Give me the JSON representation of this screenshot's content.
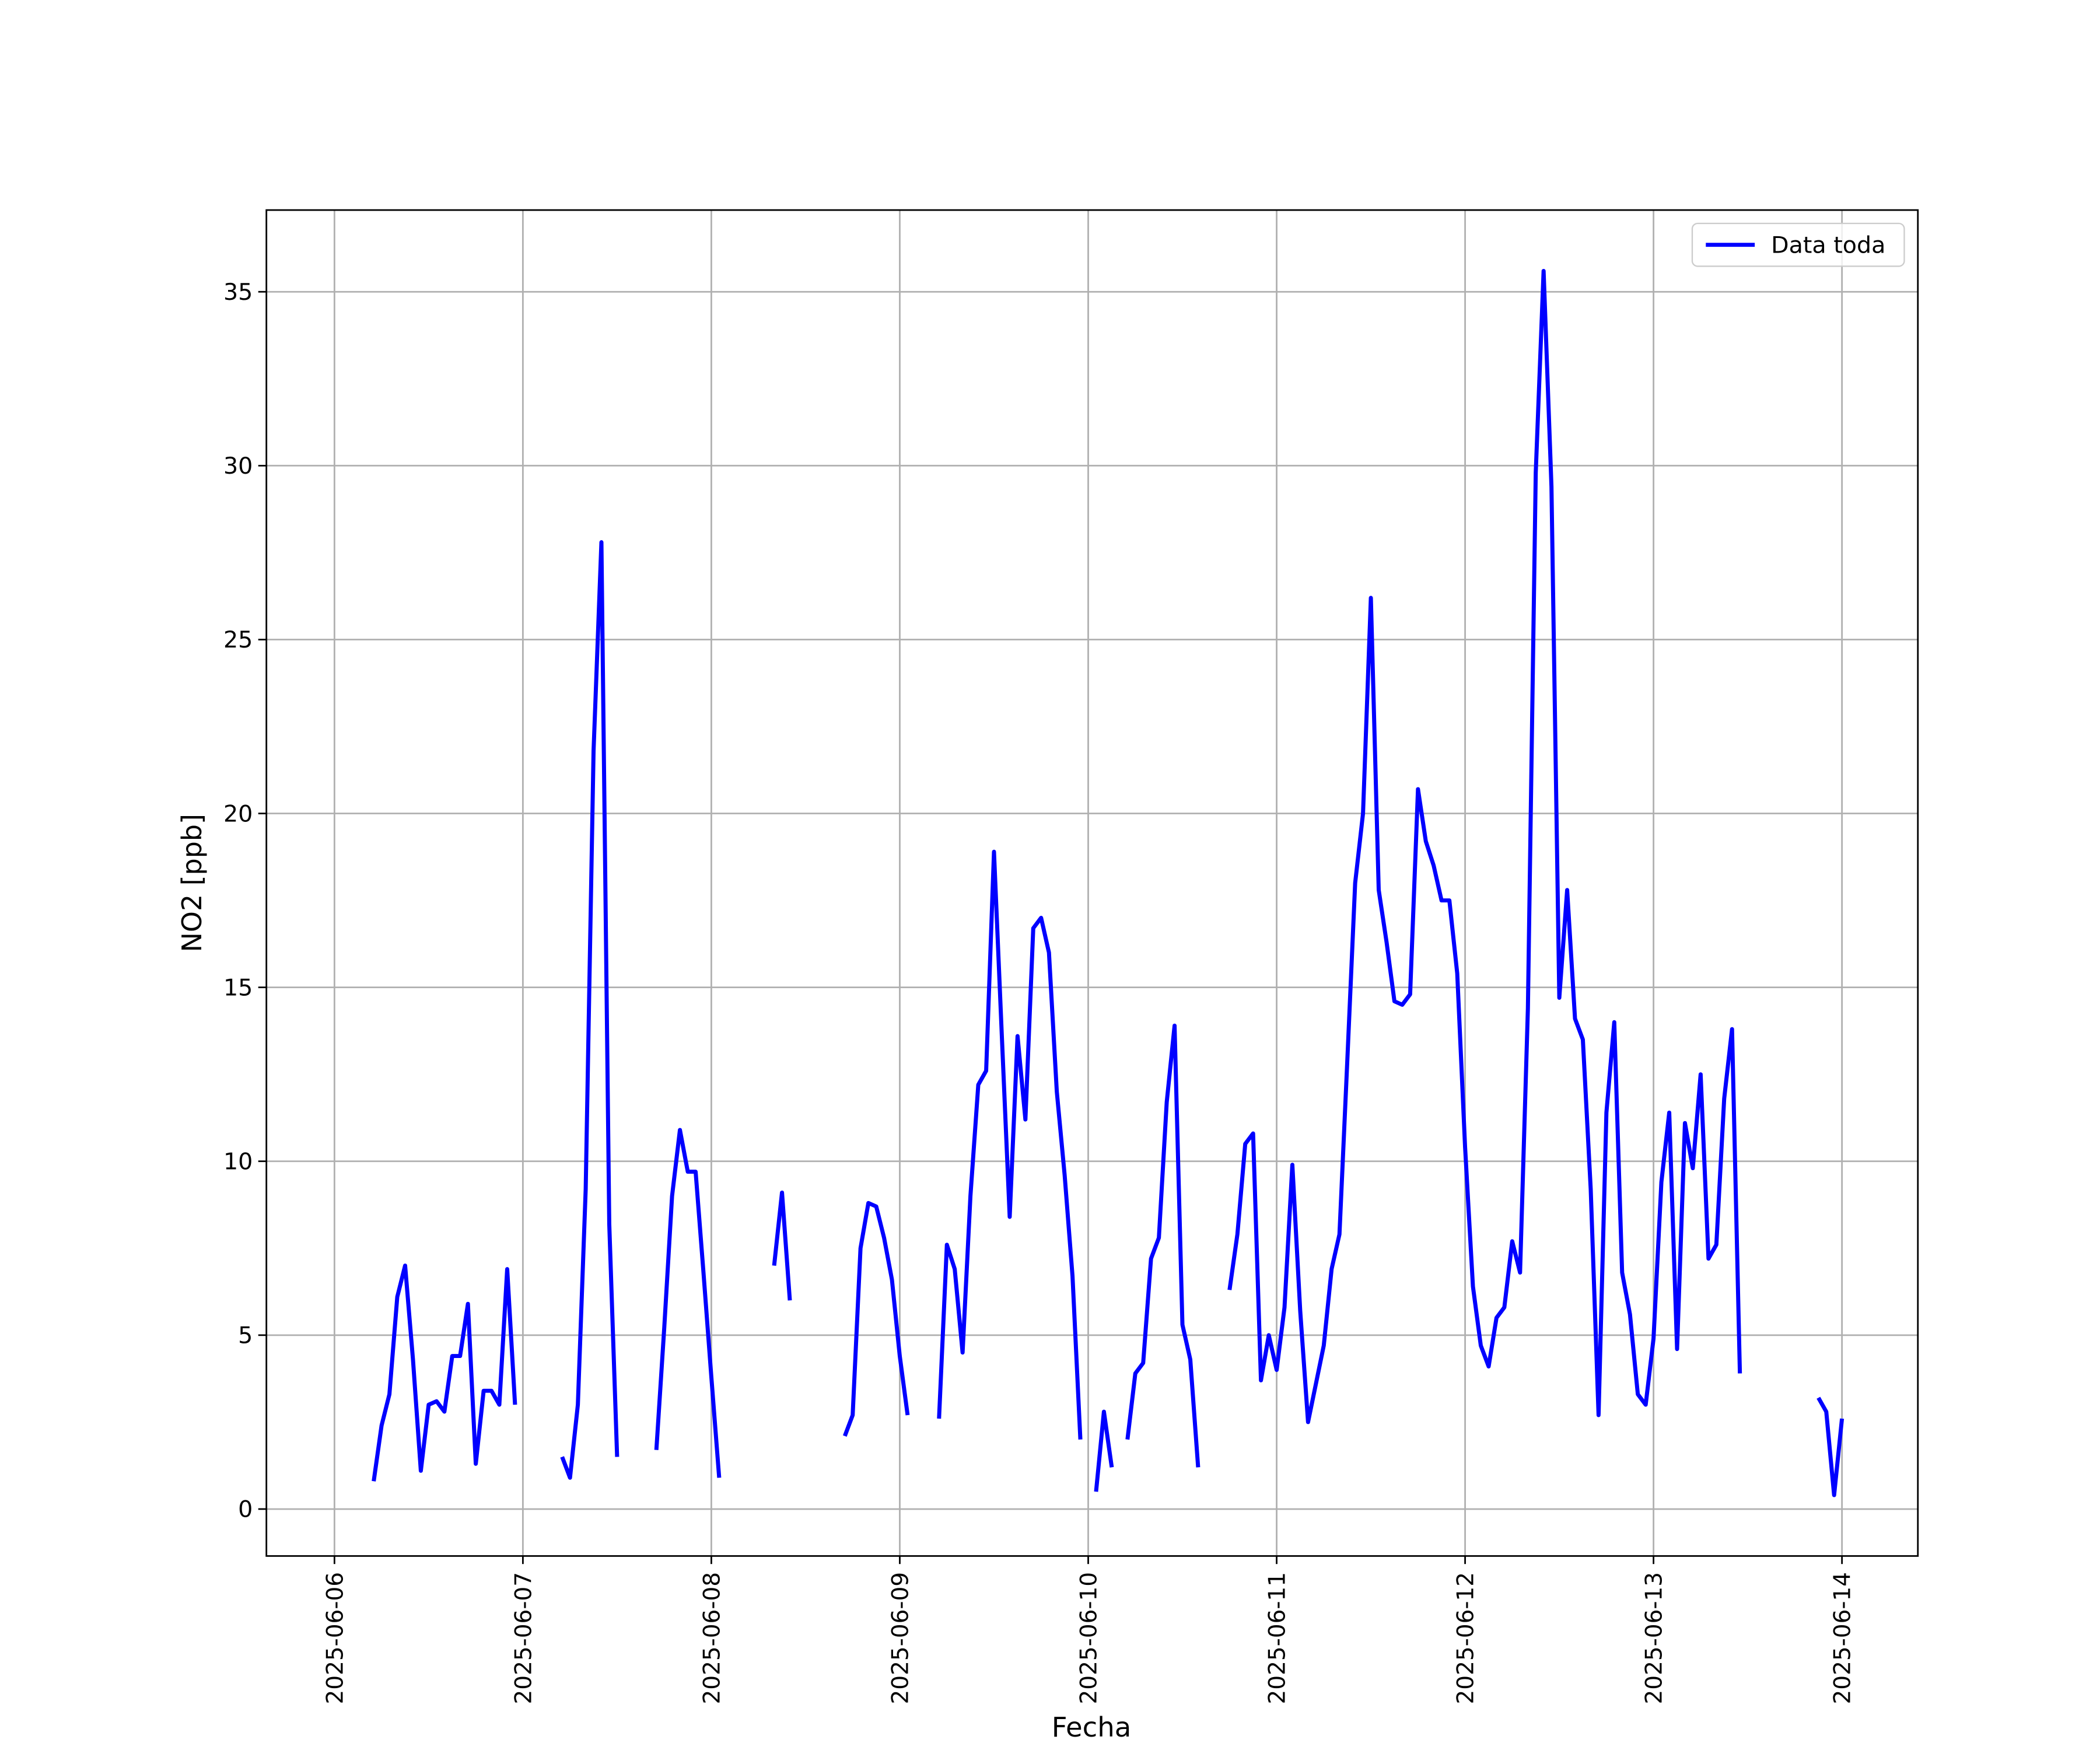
{
  "chart_data": {
    "type": "line",
    "xlabel": "Fecha",
    "ylabel": "NO2 [ppb]",
    "xlim": [
      "2025-06-05T15:20",
      "2025-06-14T09:40"
    ],
    "xticks": [
      "2025-06-06",
      "2025-06-07",
      "2025-06-08",
      "2025-06-09",
      "2025-06-10",
      "2025-06-11",
      "2025-06-12",
      "2025-06-13",
      "2025-06-14"
    ],
    "ylim": [
      -1.35,
      37.35
    ],
    "yticks": [
      0,
      5,
      10,
      15,
      20,
      25,
      30,
      35
    ],
    "grid": true,
    "legend": "upper right",
    "x": [
      "2025-06-06T05:00",
      "2025-06-06T06:00",
      "2025-06-06T07:00",
      "2025-06-06T08:00",
      "2025-06-06T09:00",
      "2025-06-06T10:00",
      "2025-06-06T11:00",
      "2025-06-06T12:00",
      "2025-06-06T13:00",
      "2025-06-06T14:00",
      "2025-06-06T15:00",
      "2025-06-06T16:00",
      "2025-06-06T17:00",
      "2025-06-06T18:00",
      "2025-06-06T19:00",
      "2025-06-06T20:00",
      "2025-06-06T21:00",
      "2025-06-06T22:00",
      "2025-06-06T23:00",
      "2025-06-07T00:00",
      "2025-06-07T01:00",
      "2025-06-07T02:00",
      "2025-06-07T03:00",
      "2025-06-07T04:00",
      "2025-06-07T05:00",
      "2025-06-07T06:00",
      "2025-06-07T07:00",
      "2025-06-07T08:00",
      "2025-06-07T09:00",
      "2025-06-07T10:00",
      "2025-06-07T11:00",
      "2025-06-07T12:00",
      "2025-06-07T13:00",
      "2025-06-07T14:00",
      "2025-06-07T15:00",
      "2025-06-07T16:00",
      "2025-06-07T17:00",
      "2025-06-07T18:00",
      "2025-06-07T19:00",
      "2025-06-07T20:00",
      "2025-06-07T21:00",
      "2025-06-07T22:00",
      "2025-06-07T23:00",
      "2025-06-08T00:00",
      "2025-06-08T01:00",
      "2025-06-08T02:00",
      "2025-06-08T03:00",
      "2025-06-08T04:00",
      "2025-06-08T05:00",
      "2025-06-08T06:00",
      "2025-06-08T07:00",
      "2025-06-08T08:00",
      "2025-06-08T09:00",
      "2025-06-08T10:00",
      "2025-06-08T11:00",
      "2025-06-08T12:00",
      "2025-06-08T13:00",
      "2025-06-08T14:00",
      "2025-06-08T15:00",
      "2025-06-08T16:00",
      "2025-06-08T17:00",
      "2025-06-08T18:00",
      "2025-06-08T19:00",
      "2025-06-08T20:00",
      "2025-06-08T21:00",
      "2025-06-08T22:00",
      "2025-06-08T23:00",
      "2025-06-09T00:00",
      "2025-06-09T01:00",
      "2025-06-09T02:00",
      "2025-06-09T03:00",
      "2025-06-09T04:00",
      "2025-06-09T05:00",
      "2025-06-09T06:00",
      "2025-06-09T07:00",
      "2025-06-09T08:00",
      "2025-06-09T09:00",
      "2025-06-09T10:00",
      "2025-06-09T11:00",
      "2025-06-09T12:00",
      "2025-06-09T13:00",
      "2025-06-09T14:00",
      "2025-06-09T15:00",
      "2025-06-09T16:00",
      "2025-06-09T17:00",
      "2025-06-09T18:00",
      "2025-06-09T19:00",
      "2025-06-09T20:00",
      "2025-06-09T21:00",
      "2025-06-09T22:00",
      "2025-06-09T23:00",
      "2025-06-10T00:00",
      "2025-06-10T01:00",
      "2025-06-10T02:00",
      "2025-06-10T03:00",
      "2025-06-10T04:00",
      "2025-06-10T05:00",
      "2025-06-10T06:00",
      "2025-06-10T07:00",
      "2025-06-10T08:00",
      "2025-06-10T09:00",
      "2025-06-10T10:00",
      "2025-06-10T11:00",
      "2025-06-10T12:00",
      "2025-06-10T13:00",
      "2025-06-10T14:00",
      "2025-06-10T15:00",
      "2025-06-10T16:00",
      "2025-06-10T17:00",
      "2025-06-10T18:00",
      "2025-06-10T19:00",
      "2025-06-10T20:00",
      "2025-06-10T21:00",
      "2025-06-10T22:00",
      "2025-06-10T23:00",
      "2025-06-11T00:00",
      "2025-06-11T01:00",
      "2025-06-11T02:00",
      "2025-06-11T03:00",
      "2025-06-11T04:00",
      "2025-06-11T05:00",
      "2025-06-11T06:00",
      "2025-06-11T07:00",
      "2025-06-11T08:00",
      "2025-06-11T09:00",
      "2025-06-11T10:00",
      "2025-06-11T11:00",
      "2025-06-11T12:00",
      "2025-06-11T13:00",
      "2025-06-11T14:00",
      "2025-06-11T15:00",
      "2025-06-11T16:00",
      "2025-06-11T17:00",
      "2025-06-11T18:00",
      "2025-06-11T19:00",
      "2025-06-11T20:00",
      "2025-06-11T21:00",
      "2025-06-11T22:00",
      "2025-06-11T23:00",
      "2025-06-12T00:00",
      "2025-06-12T01:00",
      "2025-06-12T02:00",
      "2025-06-12T03:00",
      "2025-06-12T04:00",
      "2025-06-12T05:00",
      "2025-06-12T06:00",
      "2025-06-12T07:00",
      "2025-06-12T08:00",
      "2025-06-12T09:00",
      "2025-06-12T10:00",
      "2025-06-12T11:00",
      "2025-06-12T12:00",
      "2025-06-12T13:00",
      "2025-06-12T14:00",
      "2025-06-12T15:00",
      "2025-06-12T16:00",
      "2025-06-12T17:00",
      "2025-06-12T18:00",
      "2025-06-12T19:00",
      "2025-06-12T20:00",
      "2025-06-12T21:00",
      "2025-06-12T22:00",
      "2025-06-12T23:00",
      "2025-06-13T00:00",
      "2025-06-13T01:00",
      "2025-06-13T02:00",
      "2025-06-13T03:00",
      "2025-06-13T04:00",
      "2025-06-13T05:00",
      "2025-06-13T06:00",
      "2025-06-13T07:00",
      "2025-06-13T08:00",
      "2025-06-13T09:00",
      "2025-06-13T10:00",
      "2025-06-13T11:00",
      "2025-06-13T12:00",
      "2025-06-13T13:00",
      "2025-06-13T14:00",
      "2025-06-13T15:00",
      "2025-06-13T16:00",
      "2025-06-13T17:00",
      "2025-06-13T18:00",
      "2025-06-13T19:00",
      "2025-06-13T20:00",
      "2025-06-13T21:00",
      "2025-06-13T22:00",
      "2025-06-13T23:00",
      "2025-06-14T00:00"
    ],
    "series": [
      {
        "name": "Data toda",
        "color": "#0000ff",
        "values": [
          0.8,
          2.4,
          3.3,
          6.1,
          7.0,
          4.3,
          1.1,
          3.0,
          3.1,
          2.8,
          4.4,
          4.4,
          5.9,
          1.3,
          3.4,
          3.4,
          3.0,
          6.9,
          3.0,
          null,
          null,
          null,
          null,
          null,
          1.5,
          0.9,
          3.0,
          9.2,
          21.8,
          27.8,
          8.2,
          1.5,
          null,
          null,
          null,
          null,
          1.7,
          5.2,
          9.0,
          10.9,
          9.7,
          9.7,
          6.8,
          3.8,
          0.9,
          null,
          null,
          null,
          null,
          null,
          null,
          7.0,
          9.1,
          6.0,
          null,
          null,
          null,
          null,
          null,
          null,
          2.1,
          2.7,
          7.5,
          8.8,
          8.7,
          7.8,
          6.6,
          4.4,
          2.7,
          null,
          null,
          null,
          2.6,
          7.6,
          6.9,
          4.5,
          9.0,
          12.2,
          12.6,
          18.9,
          13.6,
          8.4,
          13.6,
          11.2,
          16.7,
          17.0,
          16.0,
          12.0,
          9.6,
          6.7,
          2.0,
          null,
          0.5,
          2.8,
          1.2,
          null,
          2.0,
          3.9,
          4.2,
          7.2,
          7.8,
          11.7,
          13.9,
          5.3,
          4.3,
          1.2,
          null,
          null,
          null,
          6.3,
          7.9,
          10.5,
          10.8,
          3.7,
          5.0,
          4.0,
          5.8,
          9.9,
          5.7,
          2.5,
          3.6,
          4.7,
          6.9,
          7.9,
          12.9,
          18.0,
          20.0,
          26.2,
          17.8,
          16.3,
          14.6,
          14.5,
          14.8,
          20.7,
          19.2,
          18.5,
          17.5,
          17.5,
          15.4,
          10.4,
          6.4,
          4.7,
          4.1,
          5.5,
          5.8,
          7.7,
          6.8,
          14.4,
          29.8,
          35.6,
          29.4,
          14.7,
          17.8,
          14.1,
          13.5,
          9.2,
          2.7,
          11.4,
          14.0,
          6.8,
          5.6,
          3.3,
          3.0,
          4.9,
          9.4,
          11.4,
          4.6,
          11.1,
          9.8,
          12.5,
          7.2,
          7.6,
          11.8,
          13.8,
          3.9,
          null,
          null,
          null,
          null,
          null,
          null,
          null,
          null,
          null,
          3.2,
          2.8,
          0.4,
          2.6
        ]
      }
    ]
  }
}
